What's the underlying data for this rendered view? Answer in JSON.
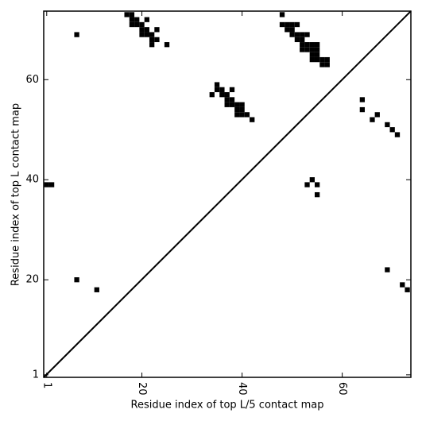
{
  "chart_data": {
    "type": "scatter",
    "marker": "square",
    "color": "#000000",
    "xlabel": "Residue index of top L/5 contact map",
    "ylabel": "Residue index of top L contact map",
    "x": [
      7,
      17,
      18,
      18,
      19,
      18,
      19,
      20,
      20,
      21,
      20,
      21,
      22,
      23,
      22,
      23,
      22,
      21,
      25,
      35,
      35,
      36,
      38,
      34,
      36,
      37,
      37,
      38,
      37,
      38,
      39,
      40,
      39,
      40,
      39,
      40,
      41,
      42,
      48,
      48,
      49,
      50,
      51,
      49,
      50,
      50,
      51,
      52,
      53,
      51,
      52,
      52,
      53,
      54,
      55,
      52,
      53,
      54,
      55,
      54,
      55,
      54,
      55,
      56,
      57,
      56,
      57,
      64,
      64,
      67,
      66,
      69,
      70,
      71,
      54,
      53,
      55,
      55,
      1,
      2,
      7,
      11,
      69,
      72,
      73
    ],
    "values": [
      69,
      73,
      73,
      72,
      72,
      71,
      71,
      71,
      70,
      70,
      69,
      69,
      69,
      70,
      68,
      68,
      67,
      72,
      67,
      59,
      58,
      58,
      58,
      57,
      57,
      57,
      56,
      56,
      55,
      55,
      55,
      55,
      54,
      54,
      53,
      53,
      53,
      52,
      73,
      71,
      71,
      71,
      71,
      70,
      70,
      69,
      69,
      69,
      69,
      68,
      68,
      67,
      67,
      67,
      67,
      66,
      66,
      66,
      66,
      65,
      65,
      64,
      64,
      64,
      64,
      63,
      63,
      56,
      54,
      53,
      52,
      51,
      50,
      49,
      40,
      39,
      39,
      37,
      39,
      39,
      20,
      18,
      22,
      19,
      18
    ],
    "xlim": [
      0.4,
      73.7
    ],
    "ylim": [
      0.5,
      73.7
    ],
    "xticks": [
      1,
      20,
      40,
      60
    ],
    "yticks": [
      1,
      20,
      40,
      60
    ]
  }
}
